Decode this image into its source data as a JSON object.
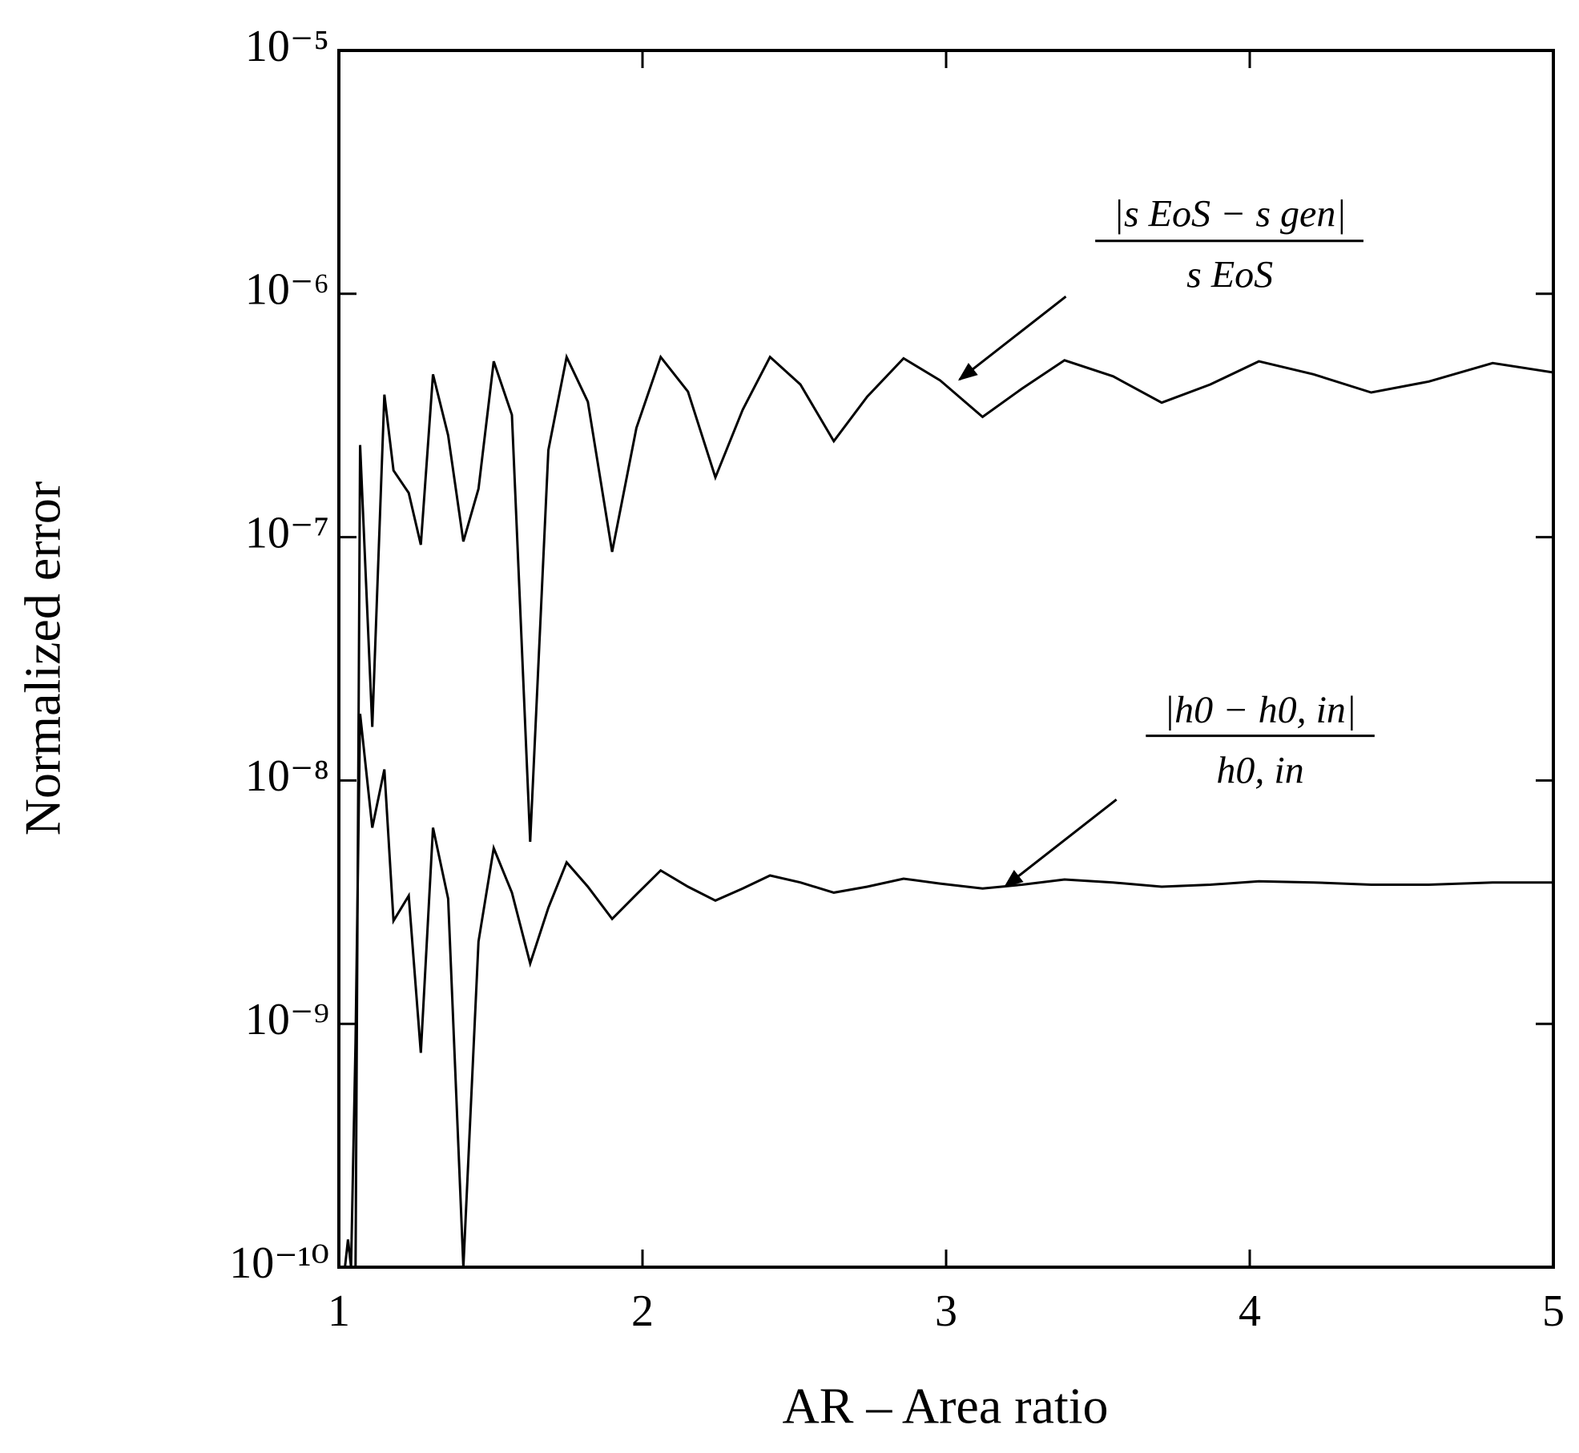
{
  "chart_data": {
    "type": "line",
    "xlabel": "AR – Area ratio",
    "ylabel": "Normalized error",
    "xlim": [
      1,
      5
    ],
    "xticks": [
      1,
      2,
      3,
      4,
      5
    ],
    "ylim": [
      1e-10,
      1e-05
    ],
    "yticks": [
      {
        "value": 1e-10,
        "label": "10⁻¹⁰"
      },
      {
        "value": 1e-09,
        "label": "10⁻⁹"
      },
      {
        "value": 1e-08,
        "label": "10⁻⁸"
      },
      {
        "value": 1e-07,
        "label": "10⁻⁷"
      },
      {
        "value": 1e-06,
        "label": "10⁻⁶"
      },
      {
        "value": 1e-05,
        "label": "10⁻⁵"
      }
    ],
    "yscale": "log",
    "series": [
      {
        "color": "#000000",
        "x": [
          1.055,
          1.07,
          1.11,
          1.15,
          1.18,
          1.23,
          1.27,
          1.31,
          1.36,
          1.41,
          1.46,
          1.51,
          1.57,
          1.63,
          1.69,
          1.75,
          1.82,
          1.9,
          1.98,
          2.06,
          2.15,
          2.24,
          2.33,
          2.42,
          2.52,
          2.63,
          2.74,
          2.86,
          2.98,
          3.12,
          3.25,
          3.39,
          3.55,
          3.71,
          3.87,
          4.03,
          4.21,
          4.4,
          4.59,
          4.8,
          5.0
        ],
        "values": [
          1e-10,
          2.39e-07,
          1.66e-08,
          3.85e-07,
          1.88e-07,
          1.52e-07,
          9.3e-08,
          4.67e-07,
          2.62e-07,
          9.6e-08,
          1.58e-07,
          5.28e-07,
          3.18e-07,
          5.6e-09,
          2.28e-07,
          5.5e-07,
          3.6e-07,
          8.7e-08,
          2.81e-07,
          5.5e-07,
          3.96e-07,
          1.76e-07,
          3.34e-07,
          5.5e-07,
          4.24e-07,
          2.48e-07,
          3.78e-07,
          5.43e-07,
          4.41e-07,
          3.12e-07,
          4.08e-07,
          5.33e-07,
          4.58e-07,
          3.57e-07,
          4.24e-07,
          5.28e-07,
          4.67e-07,
          3.93e-07,
          4.36e-07,
          5.19e-07,
          4.75e-07
        ]
      },
      {
        "color": "#000000",
        "x": [
          1.02,
          1.03,
          1.04,
          1.055,
          1.07,
          1.11,
          1.15,
          1.18,
          1.23,
          1.27,
          1.31,
          1.36,
          1.41,
          1.46,
          1.51,
          1.57,
          1.63,
          1.69,
          1.75,
          1.82,
          1.9,
          1.98,
          2.06,
          2.15,
          2.24,
          2.33,
          2.42,
          2.52,
          2.63,
          2.74,
          2.86,
          2.98,
          3.12,
          3.25,
          3.39,
          3.55,
          3.71,
          3.87,
          4.03,
          4.21,
          4.4,
          4.59,
          4.8,
          5.0
        ],
        "values": [
          1e-10,
          1.3e-10,
          1e-10,
          8.4e-10,
          1.88e-08,
          6.4e-09,
          1.11e-08,
          2.65e-09,
          3.36e-09,
          7.6e-10,
          6.4e-09,
          3.27e-09,
          1e-10,
          2.18e-09,
          5.27e-09,
          3.46e-09,
          1.77e-09,
          3e-09,
          4.61e-09,
          3.66e-09,
          2.7e-09,
          3.4e-09,
          4.27e-09,
          3.66e-09,
          3.21e-09,
          3.6e-09,
          4.07e-09,
          3.81e-09,
          3.46e-09,
          3.66e-09,
          3.95e-09,
          3.77e-09,
          3.6e-09,
          3.73e-09,
          3.92e-09,
          3.81e-09,
          3.66e-09,
          3.73e-09,
          3.85e-09,
          3.81e-09,
          3.73e-09,
          3.73e-09,
          3.81e-09,
          3.81e-09
        ]
      }
    ],
    "annotations": [
      {
        "numerator": "|s EoS − s gen|",
        "denominator": "s EoS"
      },
      {
        "numerator": "|h0 − h0, in|",
        "denominator": "h0, in"
      }
    ]
  }
}
